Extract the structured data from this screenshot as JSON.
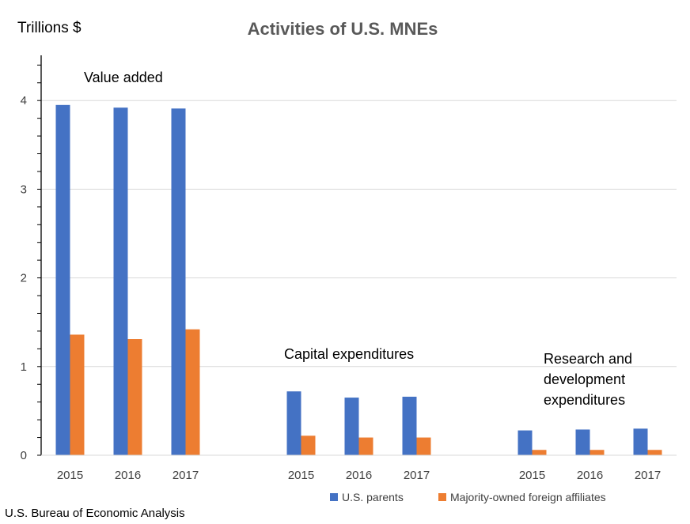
{
  "chart_data": {
    "type": "bar",
    "title": "Activities of U.S. MNEs",
    "ylabel": "Trillions $",
    "ylim": [
      0,
      4.4
    ],
    "yticks": [
      "0",
      "1",
      "2",
      "3",
      "4"
    ],
    "grid": true,
    "legend_position": "bottom",
    "groups": [
      {
        "label": [
          "Value added"
        ],
        "categories": [
          "2015",
          "2016",
          "2017"
        ]
      },
      {
        "label": [
          "Capital expenditures"
        ],
        "categories": [
          "2015",
          "2016",
          "2017"
        ]
      },
      {
        "label": [
          "Research and",
          "development",
          "expenditures"
        ],
        "categories": [
          "2015",
          "2016",
          "2017"
        ]
      }
    ],
    "series": [
      {
        "name": "U.S. parents",
        "color": "#4472C4",
        "values": [
          3.95,
          3.92,
          3.91,
          0.72,
          0.65,
          0.66,
          0.28,
          0.29,
          0.3
        ]
      },
      {
        "name": "Majority-owned foreign affiliates",
        "color": "#ED7D31",
        "values": [
          1.36,
          1.31,
          1.42,
          0.22,
          0.2,
          0.2,
          0.06,
          0.06,
          0.06
        ]
      }
    ]
  },
  "source": "U.S. Bureau of Economic Analysis"
}
